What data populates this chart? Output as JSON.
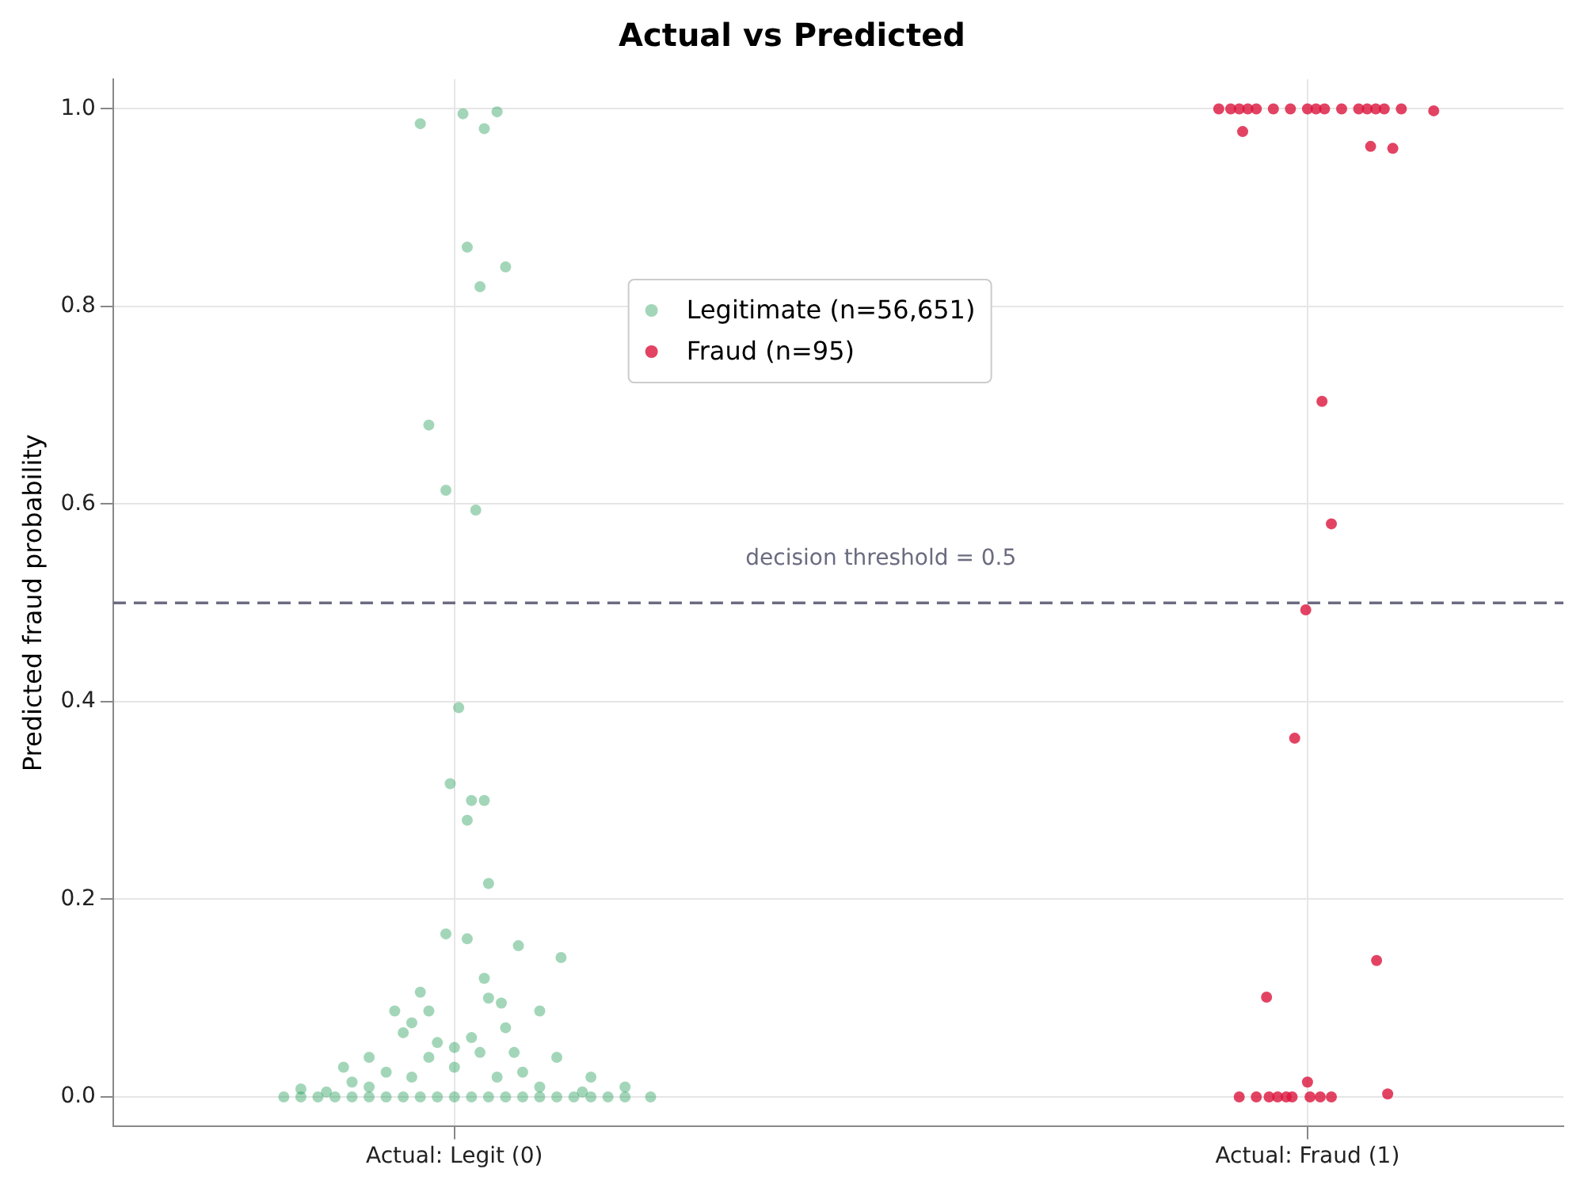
{
  "chart_data": {
    "type": "scatter",
    "title": "Actual vs Predicted",
    "ylabel": "Predicted fraud probability",
    "xlim": [
      -0.4,
      1.3
    ],
    "xticks": [
      {
        "value": 0,
        "label": "Actual: Legit (0)"
      },
      {
        "value": 1,
        "label": "Actual: Fraud (1)"
      }
    ],
    "ylim": [
      -0.03,
      1.03
    ],
    "yticks": [
      {
        "value": 0,
        "label": "0.0"
      },
      0.2,
      0.4,
      0.6,
      0.8,
      {
        "value": 1,
        "label": "1.0"
      }
    ],
    "grid": true,
    "legend": "top",
    "marker": "circle",
    "ref_lines": [
      {
        "axis": "y",
        "value": 0.5,
        "label": "decision threshold = 0.5",
        "color": "#6b6b80",
        "line_style": "dashed"
      }
    ],
    "series": [
      {
        "name": "Legitimate  (n=56,651)",
        "color": "#1a9850",
        "x": [
          -0.04,
          0.01,
          0.035,
          0.05,
          0.015,
          0.03,
          0.06,
          -0.03,
          -0.01,
          0.025,
          0.005,
          -0.005,
          0.02,
          0.035,
          0.015,
          0.04,
          -0.01,
          0.015,
          0.075,
          0.125,
          0.035,
          -0.04,
          0.055,
          -0.07,
          -0.03,
          0.1,
          -0.2,
          -0.18,
          -0.16,
          -0.14,
          -0.12,
          -0.1,
          -0.08,
          -0.06,
          -0.04,
          -0.02,
          0,
          0.02,
          0.04,
          0.06,
          0.08,
          0.1,
          0.12,
          0.14,
          0.16,
          0.18,
          0.2,
          0.23,
          -0.15,
          -0.1,
          -0.05,
          0,
          0.05,
          0.1,
          0.15,
          -0.08,
          0.08,
          -0.03,
          0.03,
          0,
          0.02,
          -0.02,
          -0.1,
          0.12,
          -0.13,
          0.16,
          0.06,
          -0.06,
          0.04,
          -0.12,
          0.2,
          -0.18,
          0.07,
          -0.05
        ],
        "values": [
          0.985,
          0.995,
          0.98,
          0.997,
          0.86,
          0.82,
          0.84,
          0.68,
          0.614,
          0.594,
          0.394,
          0.317,
          0.3,
          0.3,
          0.28,
          0.216,
          0.165,
          0.16,
          0.153,
          0.141,
          0.12,
          0.106,
          0.095,
          0.087,
          0.087,
          0.087,
          0,
          0,
          0,
          0,
          0,
          0,
          0,
          0,
          0,
          0,
          0,
          0,
          0,
          0,
          0,
          0,
          0,
          0,
          0,
          0,
          0,
          0,
          0.005,
          0.01,
          0.02,
          0.03,
          0.02,
          0.01,
          0.005,
          0.025,
          0.025,
          0.04,
          0.045,
          0.05,
          0.06,
          0.055,
          0.04,
          0.04,
          0.03,
          0.02,
          0.07,
          0.065,
          0.1,
          0.015,
          0.01,
          0.008,
          0.045,
          0.075
        ]
      },
      {
        "name": "Fraud  (n=95)",
        "color": "#dc143c",
        "x": [
          0.896,
          0.91,
          0.92,
          0.93,
          0.94,
          0.96,
          0.98,
          1,
          1.01,
          1.02,
          1.04,
          1.06,
          1.07,
          1.08,
          1.09,
          1.11,
          1.148,
          0.924,
          1.074,
          1.1,
          1.017,
          1.028,
          0.998,
          0.985,
          1.081,
          0.952,
          1,
          1.094,
          0.92,
          0.94,
          0.955,
          0.965,
          0.975,
          0.982,
          1.003,
          1.015,
          1.028
        ],
        "values": [
          1,
          1,
          1,
          1,
          1,
          1,
          1,
          1,
          1,
          1,
          1,
          1,
          1,
          1,
          1,
          1,
          0.998,
          0.977,
          0.962,
          0.96,
          0.704,
          0.58,
          0.493,
          0.363,
          0.138,
          0.101,
          0.015,
          0.003,
          0,
          0,
          0,
          0,
          0,
          0,
          0,
          0,
          0
        ]
      }
    ]
  }
}
